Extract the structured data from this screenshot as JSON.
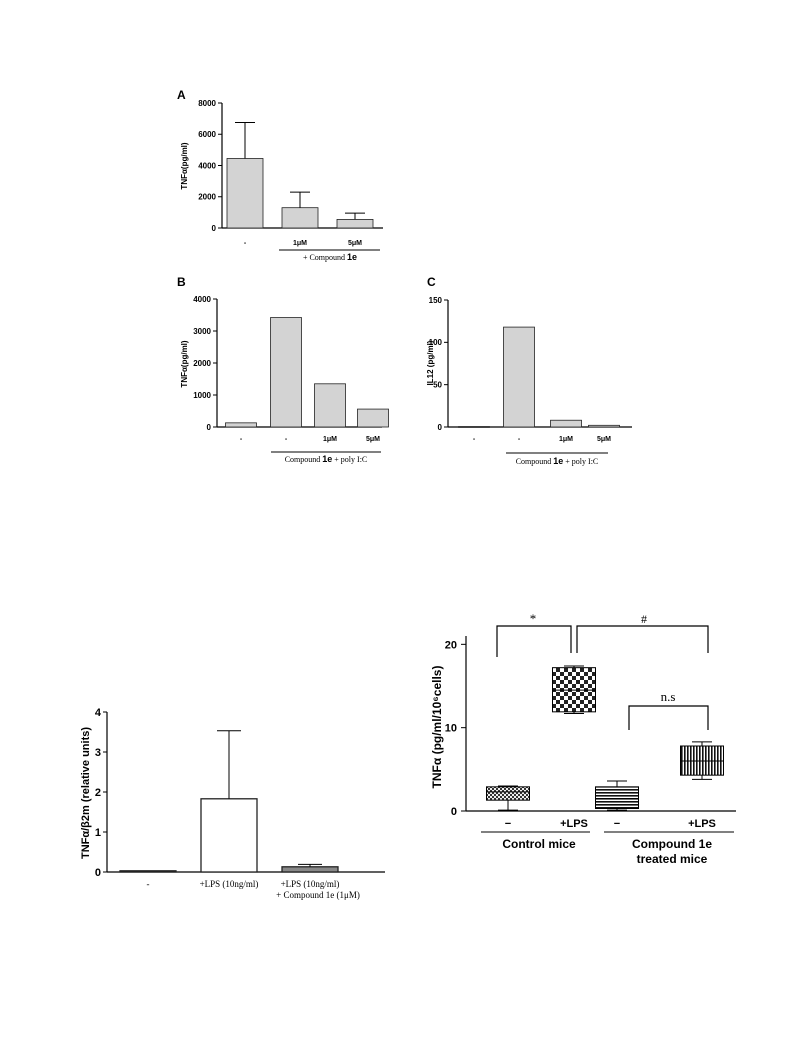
{
  "chart_data": [
    {
      "id": "A",
      "type": "bar",
      "panel_label": "A",
      "ylabel": "TNFα(pg/ml)",
      "yticks": [
        0,
        2000,
        4000,
        6000,
        8000
      ],
      "ylim": [
        0,
        8000
      ],
      "categories": [
        "-",
        "1μM",
        "5μM"
      ],
      "values": [
        4450,
        1300,
        550
      ],
      "errors": [
        2300,
        1000,
        400
      ],
      "group_label_prefix": "+ Compound ",
      "group_label_bold": "1e"
    },
    {
      "id": "B",
      "type": "bar",
      "panel_label": "B",
      "ylabel": "TNFα(pg/ml)",
      "yticks": [
        0,
        1000,
        2000,
        3000,
        4000
      ],
      "ylim": [
        0,
        4000
      ],
      "categories": [
        "-",
        "-",
        "1μM",
        "5μM"
      ],
      "values": [
        130,
        3420,
        1350,
        560
      ],
      "group_label_prefix": "Compound ",
      "group_label_bold": "1e",
      "group_label_suffix": " + poly I:C"
    },
    {
      "id": "C",
      "type": "bar",
      "panel_label": "C",
      "ylabel": "IL12 (pg/ml)",
      "yticks": [
        0,
        50,
        100,
        150
      ],
      "ylim": [
        0,
        150
      ],
      "categories": [
        "-",
        "-",
        "1μM",
        "5μM"
      ],
      "values": [
        0.5,
        118,
        8,
        2
      ],
      "group_label_prefix": "Compound ",
      "group_label_bold": "1e",
      "group_label_suffix": " + poly I:C"
    },
    {
      "id": "D",
      "type": "bar",
      "ylabel": "TNFα/β2m (relative units)",
      "yticks": [
        0,
        1,
        2,
        3,
        4
      ],
      "ylim": [
        0,
        4
      ],
      "categories": [
        "-",
        "+LPS (10ng/ml)",
        "+LPS (10ng/ml)"
      ],
      "category_line2": [
        "",
        "",
        "+ Compound 1e (1μM)"
      ],
      "values": [
        0.03,
        1.83,
        0.13
      ],
      "errors": [
        0,
        1.7,
        0.06
      ],
      "bar_fills": [
        "#888888",
        "#ffffff",
        "#888888"
      ]
    },
    {
      "id": "E",
      "type": "box",
      "ylabel": "TNFα (pg/ml/10⁶cells)",
      "yticks": [
        0,
        10,
        20
      ],
      "ylim": [
        0,
        21
      ],
      "categories": [
        "−",
        "+LPS",
        "−",
        "+LPS"
      ],
      "groups": [
        "Control mice",
        "Compound 1e",
        "treated mice"
      ],
      "boxes": [
        {
          "min": 0.1,
          "q1": 1.3,
          "median": 2.3,
          "q3": 2.9,
          "max": 3.0,
          "pattern": "checker-fine"
        },
        {
          "min": 11.7,
          "q1": 11.9,
          "median": 14.5,
          "q3": 17.2,
          "max": 17.4,
          "pattern": "checker"
        },
        {
          "min": 0.1,
          "q1": 0.3,
          "median": 1.5,
          "q3": 2.9,
          "max": 3.6,
          "pattern": "hlines"
        },
        {
          "min": 3.8,
          "q1": 4.3,
          "median": 6.0,
          "q3": 7.8,
          "max": 8.3,
          "pattern": "vlines"
        }
      ],
      "annotations": [
        "*",
        "#",
        "n.s"
      ]
    }
  ]
}
